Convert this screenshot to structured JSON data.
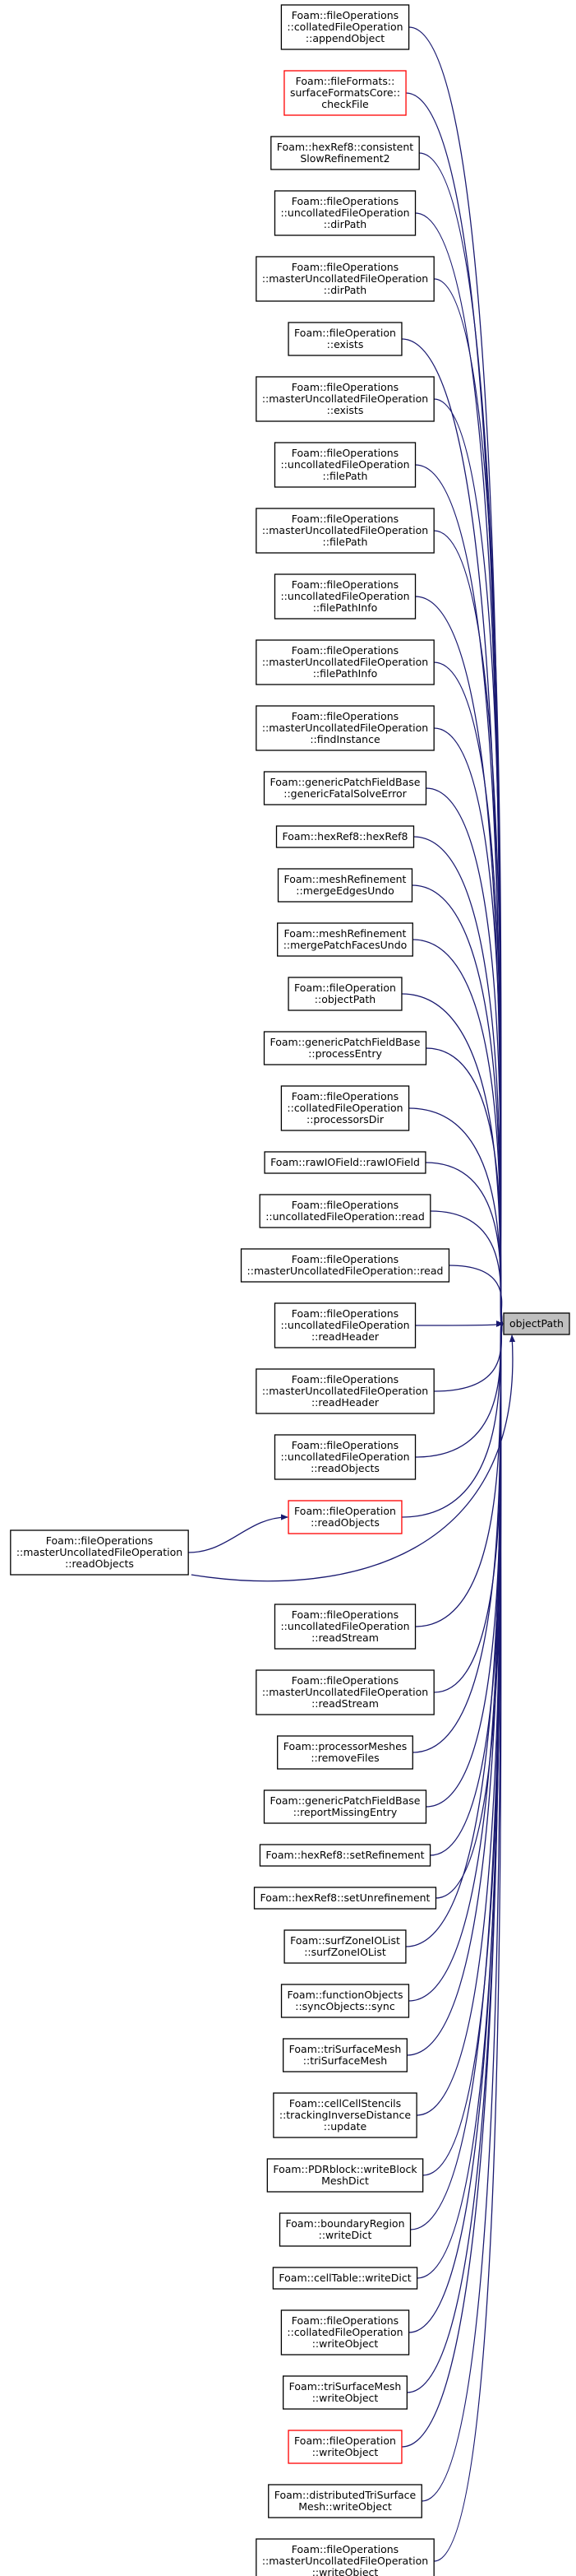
{
  "target": {
    "lines": [
      "objectPath"
    ],
    "fill": "#bfbfbf",
    "border_color": "#000000"
  },
  "edge_color": "#191970",
  "callers": [
    {
      "lines": [
        "Foam::fileOperations",
        "::collatedFileOperation",
        "::appendObject"
      ],
      "border_color": "#000000"
    },
    {
      "lines": [
        "Foam::fileFormats::",
        "surfaceFormatsCore::",
        "checkFile"
      ],
      "border_color": "#ff0000"
    },
    {
      "lines": [
        "Foam::hexRef8::consistent",
        "SlowRefinement2"
      ],
      "border_color": "#000000"
    },
    {
      "lines": [
        "Foam::fileOperations",
        "::uncollatedFileOperation",
        "::dirPath"
      ],
      "border_color": "#000000"
    },
    {
      "lines": [
        "Foam::fileOperations",
        "::masterUncollatedFileOperation",
        "::dirPath"
      ],
      "border_color": "#000000"
    },
    {
      "lines": [
        "Foam::fileOperation",
        "::exists"
      ],
      "border_color": "#000000"
    },
    {
      "lines": [
        "Foam::fileOperations",
        "::masterUncollatedFileOperation",
        "::exists"
      ],
      "border_color": "#000000"
    },
    {
      "lines": [
        "Foam::fileOperations",
        "::uncollatedFileOperation",
        "::filePath"
      ],
      "border_color": "#000000"
    },
    {
      "lines": [
        "Foam::fileOperations",
        "::masterUncollatedFileOperation",
        "::filePath"
      ],
      "border_color": "#000000"
    },
    {
      "lines": [
        "Foam::fileOperations",
        "::uncollatedFileOperation",
        "::filePathInfo"
      ],
      "border_color": "#000000"
    },
    {
      "lines": [
        "Foam::fileOperations",
        "::masterUncollatedFileOperation",
        "::filePathInfo"
      ],
      "border_color": "#000000"
    },
    {
      "lines": [
        "Foam::fileOperations",
        "::masterUncollatedFileOperation",
        "::findInstance"
      ],
      "border_color": "#000000"
    },
    {
      "lines": [
        "Foam::genericPatchFieldBase",
        "::genericFatalSolveError"
      ],
      "border_color": "#000000"
    },
    {
      "lines": [
        "Foam::hexRef8::hexRef8"
      ],
      "border_color": "#000000"
    },
    {
      "lines": [
        "Foam::meshRefinement",
        "::mergeEdgesUndo"
      ],
      "border_color": "#000000"
    },
    {
      "lines": [
        "Foam::meshRefinement",
        "::mergePatchFacesUndo"
      ],
      "border_color": "#000000"
    },
    {
      "lines": [
        "Foam::fileOperation",
        "::objectPath"
      ],
      "border_color": "#000000"
    },
    {
      "lines": [
        "Foam::genericPatchFieldBase",
        "::processEntry"
      ],
      "border_color": "#000000"
    },
    {
      "lines": [
        "Foam::fileOperations",
        "::collatedFileOperation",
        "::processorsDir"
      ],
      "border_color": "#000000"
    },
    {
      "lines": [
        "Foam::rawIOField::rawIOField"
      ],
      "border_color": "#000000"
    },
    {
      "lines": [
        "Foam::fileOperations",
        "::uncollatedFileOperation::read"
      ],
      "border_color": "#000000"
    },
    {
      "lines": [
        "Foam::fileOperations",
        "::masterUncollatedFileOperation::read"
      ],
      "border_color": "#000000"
    },
    {
      "lines": [
        "Foam::fileOperations",
        "::uncollatedFileOperation",
        "::readHeader"
      ],
      "border_color": "#000000"
    },
    {
      "lines": [
        "Foam::fileOperations",
        "::masterUncollatedFileOperation",
        "::readHeader"
      ],
      "border_color": "#000000"
    },
    {
      "lines": [
        "Foam::fileOperations",
        "::uncollatedFileOperation",
        "::readObjects"
      ],
      "border_color": "#000000"
    },
    {
      "lines": [
        "Foam::fileOperation",
        "::readObjects"
      ],
      "border_color": "#ff0000",
      "callers": [
        {
          "lines": [
            "Foam::fileOperations",
            "::masterUncollatedFileOperation",
            "::readObjects"
          ],
          "border_color": "#000000"
        }
      ]
    },
    {
      "lines": [
        "Foam::fileOperations",
        "::uncollatedFileOperation",
        "::readStream"
      ],
      "border_color": "#000000"
    },
    {
      "lines": [
        "Foam::fileOperations",
        "::masterUncollatedFileOperation",
        "::readStream"
      ],
      "border_color": "#000000"
    },
    {
      "lines": [
        "Foam::processorMeshes",
        "::removeFiles"
      ],
      "border_color": "#000000"
    },
    {
      "lines": [
        "Foam::genericPatchFieldBase",
        "::reportMissingEntry"
      ],
      "border_color": "#000000"
    },
    {
      "lines": [
        "Foam::hexRef8::setRefinement"
      ],
      "border_color": "#000000"
    },
    {
      "lines": [
        "Foam::hexRef8::setUnrefinement"
      ],
      "border_color": "#000000"
    },
    {
      "lines": [
        "Foam::surfZoneIOList",
        "::surfZoneIOList"
      ],
      "border_color": "#000000"
    },
    {
      "lines": [
        "Foam::functionObjects",
        "::syncObjects::sync"
      ],
      "border_color": "#000000"
    },
    {
      "lines": [
        "Foam::triSurfaceMesh",
        "::triSurfaceMesh"
      ],
      "border_color": "#000000"
    },
    {
      "lines": [
        "Foam::cellCellStencils",
        "::trackingInverseDistance",
        "::update"
      ],
      "border_color": "#000000"
    },
    {
      "lines": [
        "Foam::PDRblock::writeBlock",
        "MeshDict"
      ],
      "border_color": "#000000"
    },
    {
      "lines": [
        "Foam::boundaryRegion",
        "::writeDict"
      ],
      "border_color": "#000000"
    },
    {
      "lines": [
        "Foam::cellTable::writeDict"
      ],
      "border_color": "#000000"
    },
    {
      "lines": [
        "Foam::fileOperations",
        "::collatedFileOperation",
        "::writeObject"
      ],
      "border_color": "#000000"
    },
    {
      "lines": [
        "Foam::triSurfaceMesh",
        "::writeObject"
      ],
      "border_color": "#000000"
    },
    {
      "lines": [
        "Foam::fileOperation",
        "::writeObject"
      ],
      "border_color": "#ff0000"
    },
    {
      "lines": [
        "Foam::distributedTriSurface",
        "Mesh::writeObject"
      ],
      "border_color": "#000000"
    },
    {
      "lines": [
        "Foam::fileOperations",
        "::masterUncollatedFileOperation",
        "::writeObject"
      ],
      "border_color": "#000000"
    }
  ]
}
